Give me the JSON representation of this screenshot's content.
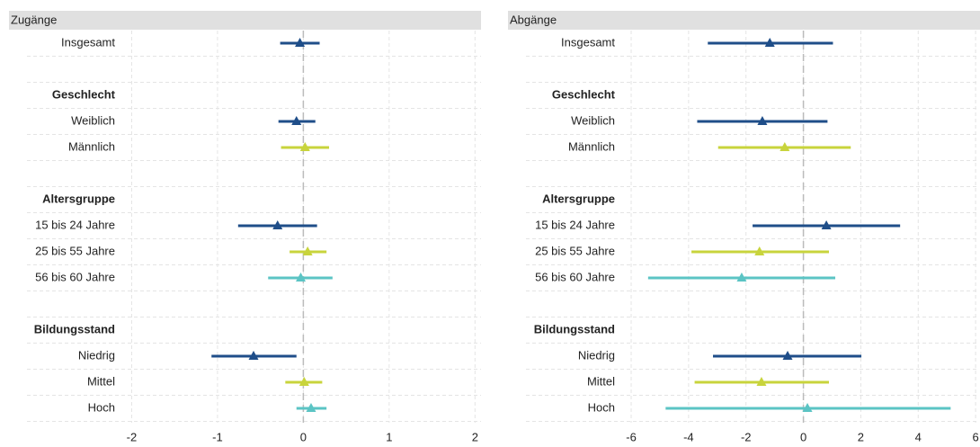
{
  "chart_data": [
    {
      "type": "forest",
      "title": "Zugänge",
      "xlim": [
        -2.12,
        2.07
      ],
      "xticks": [
        -2,
        -1,
        0,
        1,
        2
      ],
      "reference_line": 0,
      "grid": true,
      "groups": [
        {
          "categories": [
            "Insgesamt"
          ],
          "values": [
            -0.04
          ],
          "lower": [
            -0.27
          ],
          "upper": [
            0.19
          ],
          "colors": [
            "#1f4e89"
          ]
        },
        {
          "name": "Geschlecht",
          "categories": [
            "Weiblich",
            "Männlich"
          ],
          "values": [
            -0.08,
            0.02
          ],
          "lower": [
            -0.29,
            -0.26
          ],
          "upper": [
            0.14,
            0.3
          ],
          "colors": [
            "#1f4e89",
            "#c8d43c"
          ]
        },
        {
          "name": "Altersgruppe",
          "categories": [
            "15 bis 24 Jahre",
            "25 bis 55 Jahre",
            "56 bis 60 Jahre"
          ],
          "values": [
            -0.3,
            0.05,
            -0.03
          ],
          "lower": [
            -0.76,
            -0.16,
            -0.41
          ],
          "upper": [
            0.16,
            0.27,
            0.34
          ],
          "colors": [
            "#1f4e89",
            "#c8d43c",
            "#5bc4c4"
          ]
        },
        {
          "name": "Bildungsstand",
          "categories": [
            "Niedrig",
            "Mittel",
            "Hoch"
          ],
          "values": [
            -0.58,
            0.01,
            0.09
          ],
          "lower": [
            -1.07,
            -0.21,
            -0.08
          ],
          "upper": [
            -0.08,
            0.22,
            0.27
          ],
          "colors": [
            "#1f4e89",
            "#c8d43c",
            "#5bc4c4"
          ]
        }
      ]
    },
    {
      "type": "forest",
      "title": "Abgänge",
      "xlim": [
        -6.22,
        6.09
      ],
      "xticks": [
        -6,
        -4,
        -2,
        0,
        2,
        4,
        6
      ],
      "reference_line": 0,
      "grid": true,
      "groups": [
        {
          "categories": [
            "Insgesamt"
          ],
          "values": [
            -1.17
          ],
          "lower": [
            -3.33
          ],
          "upper": [
            1.03
          ],
          "colors": [
            "#1f4e89"
          ]
        },
        {
          "name": "Geschlecht",
          "categories": [
            "Weiblich",
            "Männlich"
          ],
          "values": [
            -1.43,
            -0.65
          ],
          "lower": [
            -3.7,
            -2.97
          ],
          "upper": [
            0.84,
            1.65
          ],
          "colors": [
            "#1f4e89",
            "#c8d43c"
          ]
        },
        {
          "name": "Altersgruppe",
          "categories": [
            "15 bis 24 Jahre",
            "25 bis 55 Jahre",
            "56 bis 60 Jahre"
          ],
          "values": [
            0.8,
            -1.53,
            -2.15
          ],
          "lower": [
            -1.77,
            -3.9,
            -5.41
          ],
          "upper": [
            3.37,
            0.89,
            1.11
          ],
          "colors": [
            "#1f4e89",
            "#c8d43c",
            "#5bc4c4"
          ]
        },
        {
          "name": "Bildungsstand",
          "categories": [
            "Niedrig",
            "Mittel",
            "Hoch"
          ],
          "values": [
            -0.55,
            -1.46,
            0.14
          ],
          "lower": [
            -3.15,
            -3.79,
            -4.8
          ],
          "upper": [
            2.02,
            0.89,
            5.13
          ],
          "colors": [
            "#1f4e89",
            "#c8d43c",
            "#5bc4c4"
          ]
        }
      ]
    }
  ]
}
